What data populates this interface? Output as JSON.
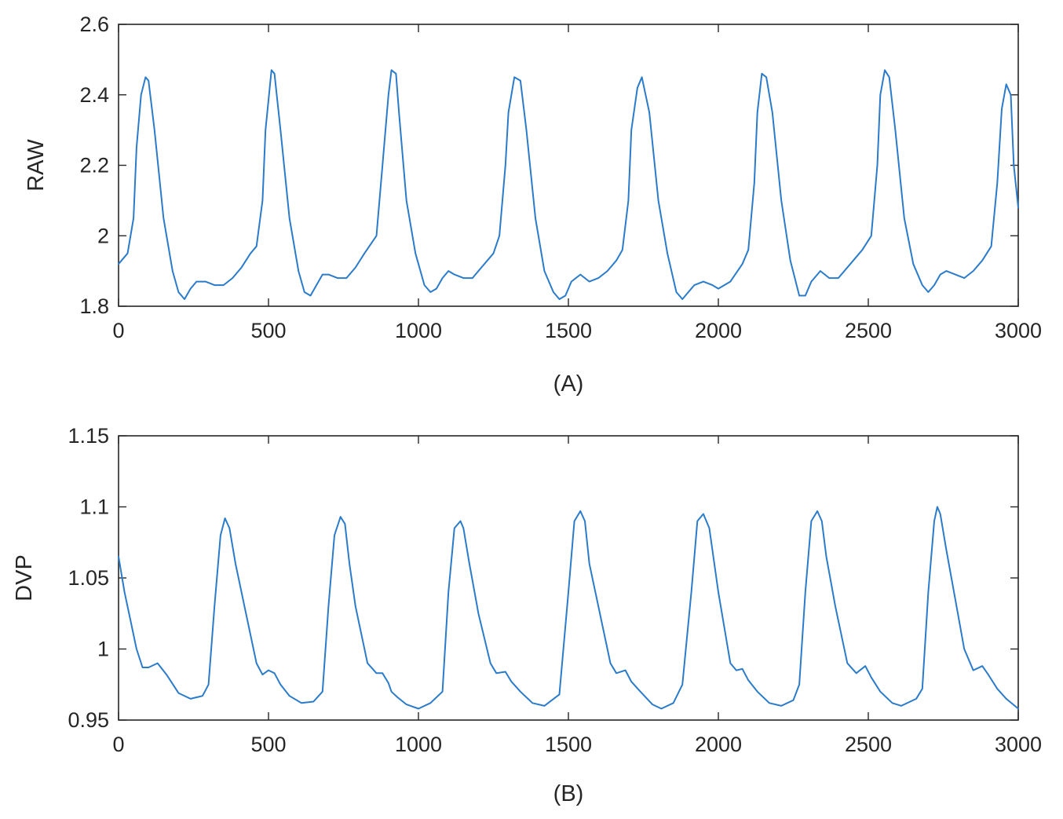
{
  "chart_data": [
    {
      "type": "line",
      "xlabel": "(A)",
      "ylabel": "RAW",
      "xlim": [
        0,
        3000
      ],
      "ylim": [
        1.8,
        2.6
      ],
      "xticks": [
        0,
        500,
        1000,
        1500,
        2000,
        2500,
        3000
      ],
      "xtick_labels": [
        "0",
        "500",
        "1000",
        "1500",
        "2000",
        "2500",
        "3000"
      ],
      "yticks": [
        1.8,
        2.0,
        2.2,
        2.4,
        2.6
      ],
      "ytick_labels": [
        "1.8",
        "2",
        "2.2",
        "2.4",
        "2.6"
      ],
      "grid": false,
      "line_color": "#2b7bcb",
      "series": [
        {
          "x": [
            0,
            30,
            50,
            60,
            75,
            90,
            100,
            120,
            150,
            180,
            200,
            220,
            240,
            260,
            290,
            320,
            350,
            380,
            410,
            440,
            460,
            480,
            490,
            510,
            520,
            540,
            570,
            600,
            620,
            640,
            660,
            680,
            700,
            730,
            760,
            790,
            820,
            860,
            880,
            900,
            910,
            925,
            935,
            960,
            990,
            1020,
            1040,
            1060,
            1080,
            1100,
            1120,
            1150,
            1180,
            1210,
            1250,
            1270,
            1290,
            1300,
            1320,
            1340,
            1360,
            1390,
            1420,
            1450,
            1470,
            1490,
            1510,
            1540,
            1570,
            1600,
            1630,
            1660,
            1680,
            1700,
            1710,
            1730,
            1745,
            1770,
            1800,
            1830,
            1860,
            1880,
            1900,
            1920,
            1950,
            1980,
            2000,
            2040,
            2080,
            2100,
            2120,
            2130,
            2145,
            2160,
            2180,
            2210,
            2240,
            2270,
            2290,
            2310,
            2340,
            2370,
            2400,
            2440,
            2480,
            2510,
            2530,
            2540,
            2555,
            2570,
            2590,
            2620,
            2650,
            2680,
            2700,
            2720,
            2740,
            2760,
            2790,
            2820,
            2850,
            2880,
            2910,
            2930,
            2945,
            2960,
            2975,
            2985,
            3000
          ],
          "y": [
            1.92,
            1.95,
            2.05,
            2.25,
            2.4,
            2.45,
            2.44,
            2.3,
            2.05,
            1.9,
            1.84,
            1.82,
            1.85,
            1.87,
            1.87,
            1.86,
            1.86,
            1.88,
            1.91,
            1.95,
            1.97,
            2.1,
            2.3,
            2.47,
            2.46,
            2.3,
            2.05,
            1.9,
            1.84,
            1.83,
            1.86,
            1.89,
            1.89,
            1.88,
            1.88,
            1.91,
            1.95,
            2.0,
            2.2,
            2.4,
            2.47,
            2.46,
            2.35,
            2.1,
            1.95,
            1.86,
            1.84,
            1.85,
            1.88,
            1.9,
            1.89,
            1.88,
            1.88,
            1.91,
            1.95,
            2.0,
            2.2,
            2.35,
            2.45,
            2.44,
            2.3,
            2.05,
            1.9,
            1.84,
            1.82,
            1.83,
            1.87,
            1.89,
            1.87,
            1.88,
            1.9,
            1.93,
            1.96,
            2.1,
            2.3,
            2.42,
            2.45,
            2.35,
            2.1,
            1.95,
            1.84,
            1.82,
            1.84,
            1.86,
            1.87,
            1.86,
            1.85,
            1.87,
            1.92,
            1.96,
            2.15,
            2.35,
            2.46,
            2.45,
            2.35,
            2.1,
            1.93,
            1.83,
            1.83,
            1.87,
            1.9,
            1.88,
            1.88,
            1.92,
            1.96,
            2.0,
            2.2,
            2.4,
            2.47,
            2.45,
            2.3,
            2.05,
            1.92,
            1.86,
            1.84,
            1.86,
            1.89,
            1.9,
            1.89,
            1.88,
            1.9,
            1.93,
            1.97,
            2.15,
            2.36,
            2.43,
            2.4,
            2.2,
            2.08
          ]
        }
      ]
    },
    {
      "type": "line",
      "xlabel": "(B)",
      "ylabel": "DVP",
      "xlim": [
        0,
        3000
      ],
      "ylim": [
        0.95,
        1.15
      ],
      "xticks": [
        0,
        500,
        1000,
        1500,
        2000,
        2500,
        3000
      ],
      "xtick_labels": [
        "0",
        "500",
        "1000",
        "1500",
        "2000",
        "2500",
        "3000"
      ],
      "yticks": [
        0.95,
        1.0,
        1.05,
        1.1,
        1.15
      ],
      "ytick_labels": [
        "0.95",
        "1",
        "1.05",
        "1.1",
        "1.15"
      ],
      "grid": false,
      "line_color": "#2b7bcb",
      "series": [
        {
          "x": [
            0,
            20,
            40,
            60,
            80,
            100,
            130,
            160,
            200,
            240,
            280,
            300,
            320,
            340,
            355,
            370,
            390,
            420,
            460,
            480,
            500,
            520,
            540,
            570,
            610,
            650,
            680,
            700,
            720,
            740,
            755,
            770,
            790,
            830,
            860,
            880,
            900,
            910,
            930,
            960,
            1000,
            1040,
            1080,
            1100,
            1120,
            1140,
            1150,
            1170,
            1200,
            1240,
            1260,
            1290,
            1310,
            1340,
            1380,
            1420,
            1470,
            1500,
            1520,
            1540,
            1555,
            1570,
            1600,
            1640,
            1660,
            1690,
            1710,
            1740,
            1780,
            1810,
            1850,
            1880,
            1910,
            1930,
            1950,
            1970,
            2000,
            2040,
            2060,
            2080,
            2100,
            2130,
            2170,
            2210,
            2250,
            2270,
            2290,
            2310,
            2330,
            2345,
            2360,
            2390,
            2430,
            2460,
            2490,
            2510,
            2540,
            2580,
            2610,
            2660,
            2680,
            2700,
            2720,
            2730,
            2740,
            2760,
            2790,
            2820,
            2850,
            2880,
            2900,
            2930,
            2960,
            3000
          ],
          "y": [
            1.065,
            1.04,
            1.02,
            1.0,
            0.987,
            0.987,
            0.99,
            0.982,
            0.969,
            0.965,
            0.967,
            0.975,
            1.03,
            1.08,
            1.092,
            1.085,
            1.06,
            1.03,
            0.99,
            0.982,
            0.985,
            0.983,
            0.975,
            0.967,
            0.962,
            0.963,
            0.97,
            1.03,
            1.08,
            1.093,
            1.088,
            1.06,
            1.03,
            0.99,
            0.983,
            0.983,
            0.976,
            0.97,
            0.966,
            0.961,
            0.958,
            0.962,
            0.97,
            1.04,
            1.085,
            1.09,
            1.085,
            1.06,
            1.025,
            0.99,
            0.983,
            0.984,
            0.977,
            0.97,
            0.962,
            0.96,
            0.968,
            1.04,
            1.09,
            1.097,
            1.09,
            1.06,
            1.03,
            0.99,
            0.983,
            0.985,
            0.977,
            0.97,
            0.961,
            0.958,
            0.962,
            0.975,
            1.04,
            1.09,
            1.095,
            1.085,
            1.04,
            0.99,
            0.985,
            0.986,
            0.978,
            0.97,
            0.962,
            0.96,
            0.964,
            0.975,
            1.04,
            1.09,
            1.097,
            1.09,
            1.065,
            1.03,
            0.99,
            0.983,
            0.988,
            0.98,
            0.97,
            0.962,
            0.96,
            0.965,
            0.972,
            1.04,
            1.09,
            1.1,
            1.095,
            1.07,
            1.035,
            1.0,
            0.985,
            0.988,
            0.982,
            0.972,
            0.965,
            0.958
          ]
        }
      ]
    }
  ]
}
